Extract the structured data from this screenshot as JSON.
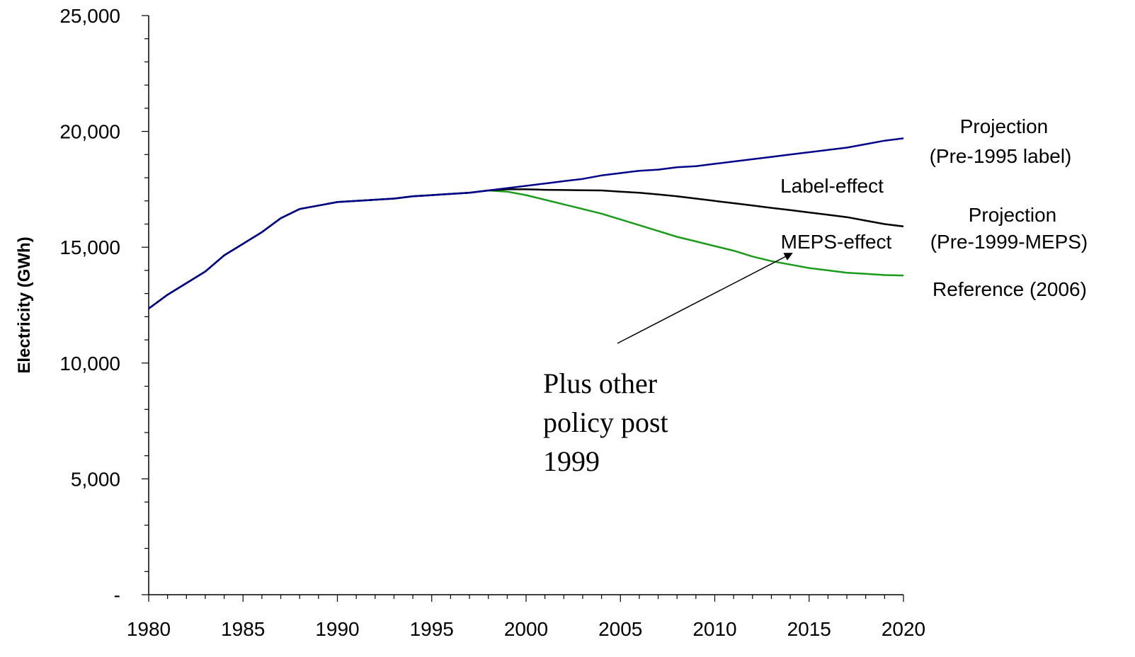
{
  "chart_data": {
    "type": "line",
    "xlabel": "",
    "ylabel": "Electricity (GWh)",
    "xlim": [
      1980,
      2020
    ],
    "ylim": [
      0,
      25000
    ],
    "x_ticks": [
      "1980",
      "1985",
      "1990",
      "1995",
      "2000",
      "2005",
      "2010",
      "2015",
      "2020"
    ],
    "y_ticks": [
      "-",
      "5,000",
      "10,000",
      "15,000",
      "20,000",
      "25,000"
    ],
    "grid": false,
    "x": [
      1980,
      1981,
      1982,
      1983,
      1984,
      1985,
      1986,
      1987,
      1988,
      1989,
      1990,
      1991,
      1992,
      1993,
      1994,
      1995,
      1996,
      1997,
      1998,
      1999,
      2000,
      2001,
      2002,
      2003,
      2004,
      2005,
      2006,
      2007,
      2008,
      2009,
      2010,
      2011,
      2012,
      2013,
      2014,
      2015,
      2016,
      2017,
      2018,
      2019,
      2020
    ],
    "series": [
      {
        "name": "Reference (2006)",
        "color": "#1a9b1a",
        "values": [
          12350,
          12950,
          13450,
          13950,
          14650,
          15150,
          15650,
          16250,
          16650,
          16800,
          16950,
          17000,
          17050,
          17100,
          17200,
          17250,
          17300,
          17350,
          17450,
          17400,
          17250,
          17050,
          16850,
          16650,
          16450,
          16200,
          15950,
          15700,
          15450,
          15250,
          15050,
          14850,
          14600,
          14400,
          14250,
          14100,
          14000,
          13900,
          13850,
          13800,
          13780
        ]
      },
      {
        "name": "Projection (Pre-1999-MEPS)",
        "color": "#000000",
        "values": [
          12350,
          12950,
          13450,
          13950,
          14650,
          15150,
          15650,
          16250,
          16650,
          16800,
          16950,
          17000,
          17050,
          17100,
          17200,
          17250,
          17300,
          17350,
          17450,
          17500,
          17500,
          17480,
          17470,
          17460,
          17450,
          17400,
          17350,
          17280,
          17200,
          17100,
          17000,
          16900,
          16800,
          16700,
          16600,
          16500,
          16400,
          16300,
          16150,
          16000,
          15900
        ]
      },
      {
        "name": "Projection (Pre-1995 label)",
        "color": "#00008b",
        "values": [
          12350,
          12950,
          13450,
          13950,
          14650,
          15150,
          15650,
          16250,
          16650,
          16800,
          16950,
          17000,
          17050,
          17100,
          17200,
          17250,
          17300,
          17350,
          17450,
          17550,
          17650,
          17750,
          17850,
          17950,
          18100,
          18200,
          18300,
          18350,
          18450,
          18500,
          18600,
          18700,
          18800,
          18900,
          19000,
          19100,
          19200,
          19300,
          19450,
          19600,
          19700
        ]
      }
    ],
    "annotations": {
      "proj_label_line1": "Projection",
      "proj_label_line2": "(Pre-1995 label)",
      "label_effect": "Label-effect",
      "proj_meps_line1": "Projection",
      "proj_meps_line2": "(Pre-1999-MEPS)",
      "meps_effect": "MEPS-effect",
      "reference": "Reference (2006)",
      "note_line1": "Plus other",
      "note_line2": "policy post",
      "note_line3": "1999"
    }
  }
}
